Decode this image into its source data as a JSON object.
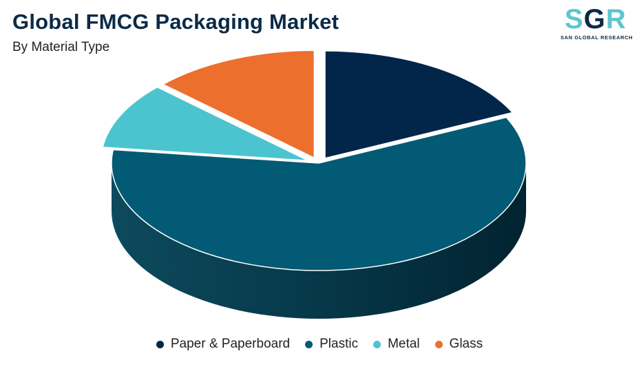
{
  "header": {
    "title": "Global FMCG Packaging Market",
    "subtitle": "By Material Type"
  },
  "logo": {
    "mark": "SGR",
    "text": "SAN GLOBAL RESEARCH",
    "colors": {
      "primary": "#5cc7d0",
      "secondary": "#0a2a47"
    }
  },
  "chart_data": {
    "type": "pie",
    "title": "Global FMCG Packaging Market",
    "subtitle": "By Material Type",
    "legend_position": "bottom",
    "slices": [
      {
        "name": "Paper & Paperboard",
        "value": 18,
        "color": "#02264a"
      },
      {
        "name": "Plastic",
        "value": 59,
        "color": "#035a75"
      },
      {
        "name": "Metal",
        "value": 10,
        "color": "#4cc4d0"
      },
      {
        "name": "Glass",
        "value": 13,
        "color": "#ed6f2e"
      }
    ]
  }
}
